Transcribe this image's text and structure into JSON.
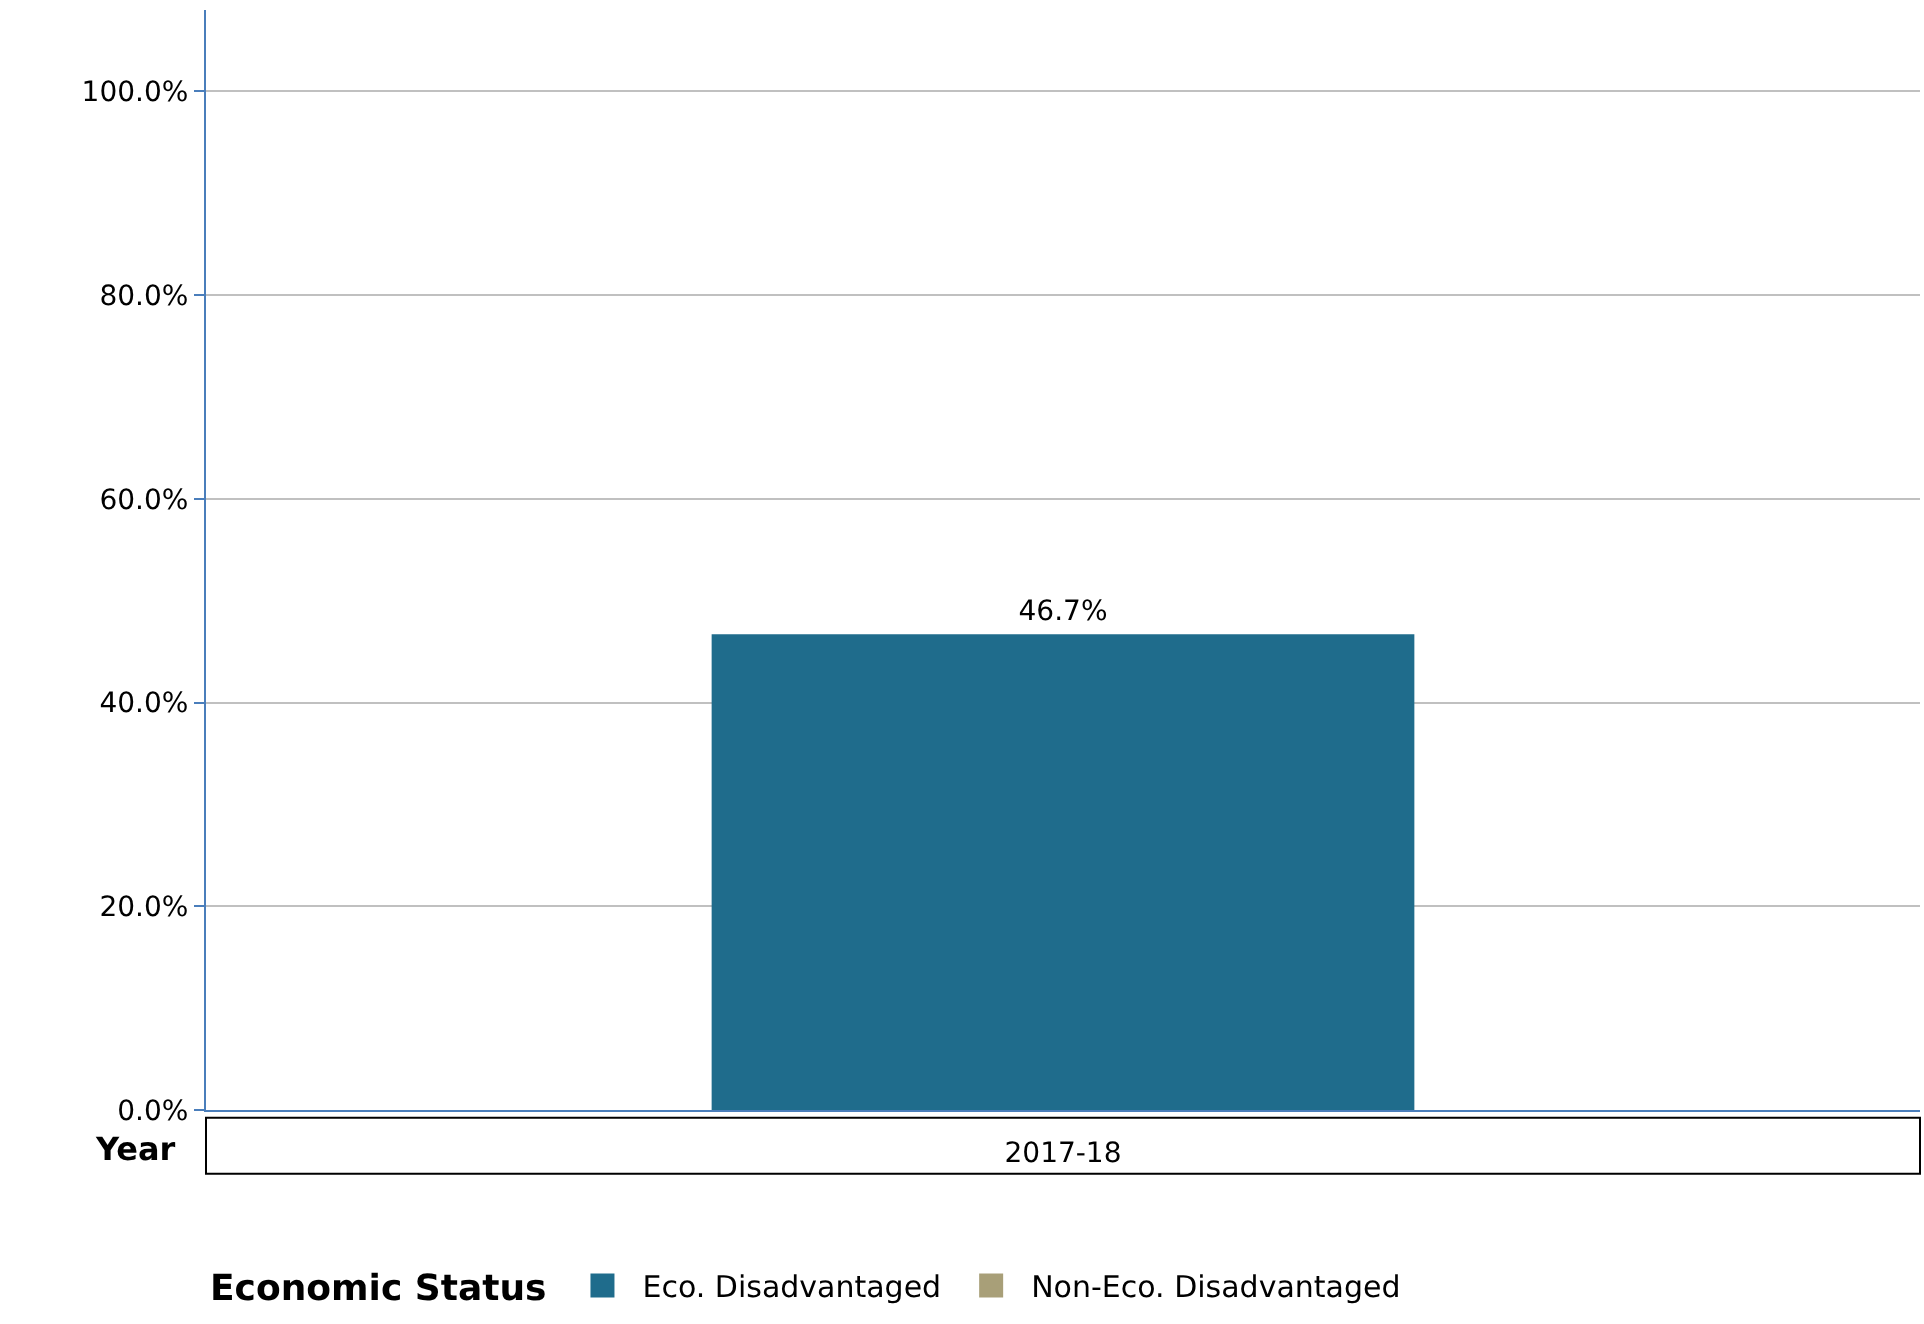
{
  "chart_data": {
    "type": "bar",
    "xlabel": "Year",
    "legend_title": "Economic Status",
    "categories": [
      "2017-18"
    ],
    "series": [
      {
        "name": "Eco. Disadvantaged",
        "color": "#1f6c8c",
        "values": [
          46.7
        ],
        "value_labels": [
          "46.7%"
        ]
      },
      {
        "name": "Non-Eco. Disadvantaged",
        "color": "#a89f78",
        "values": [
          null
        ]
      }
    ],
    "ylim": [
      0,
      108
    ],
    "yticks": [
      {
        "value": 0,
        "label": "0.0%"
      },
      {
        "value": 20,
        "label": "20.0%"
      },
      {
        "value": 40,
        "label": "40.0%"
      },
      {
        "value": 60,
        "label": "60.0%"
      },
      {
        "value": 80,
        "label": "80.0%"
      },
      {
        "value": 100,
        "label": "100.0%"
      }
    ],
    "grid": "y",
    "legend": "bottom"
  }
}
